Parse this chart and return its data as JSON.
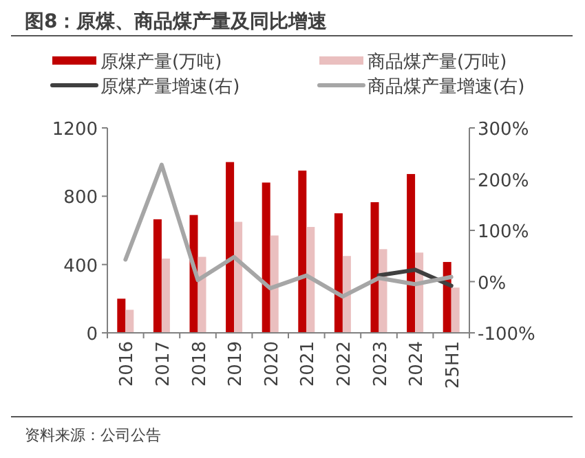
{
  "chart_data": {
    "type": "bar",
    "title": "图8：原煤、商品煤产量及同比增速",
    "categories": [
      "2016",
      "2017",
      "2018",
      "2019",
      "2020",
      "2021",
      "2022",
      "2023",
      "2024",
      "25H1"
    ],
    "series": [
      {
        "name": "原煤产量(万吨)",
        "color": "#c00000",
        "values": [
          200,
          665,
          690,
          1000,
          880,
          950,
          700,
          765,
          930,
          415
        ]
      },
      {
        "name": "商品煤产量(万吨)",
        "color": "#eabfbf",
        "values": [
          135,
          435,
          445,
          650,
          570,
          620,
          450,
          490,
          470,
          265
        ]
      },
      {
        "name": "原煤产量增速(右)",
        "type": "line",
        "axis": "y2",
        "color": "#404040",
        "values": [
          null,
          null,
          null,
          null,
          null,
          null,
          null,
          12,
          23,
          -8
        ]
      },
      {
        "name": "商品煤产量增速(右)",
        "type": "line",
        "axis": "y2",
        "color": "#a6a6a6",
        "values": [
          43,
          228,
          3,
          48,
          -13,
          12,
          -29,
          7,
          -5,
          9
        ]
      }
    ],
    "ylim": [
      0,
      1200
    ],
    "yticks": [
      0,
      400,
      800,
      1200
    ],
    "y2lim": [
      -100,
      300
    ],
    "y2ticks": [
      {
        "value": -100,
        "label": "-100%"
      },
      {
        "value": 0,
        "label": "0%"
      },
      {
        "value": 100,
        "label": "100%"
      },
      {
        "value": 200,
        "label": "200%"
      },
      {
        "value": 300,
        "label": "300%"
      }
    ],
    "legend": "top",
    "grid": false,
    "annotations": [
      "资料来源：公司公告"
    ]
  }
}
